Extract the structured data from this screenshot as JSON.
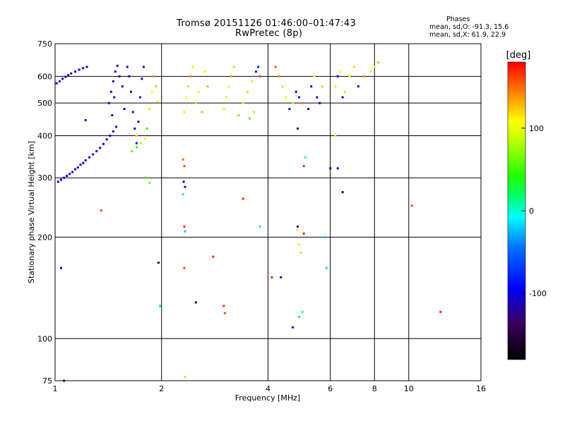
{
  "figure": {
    "title": "Tromsø 20151126 01:46:00–01:47:43",
    "subtitle": "RwPretec (8p)"
  },
  "stats": {
    "heading": "Phases",
    "line_o": "mean, sd,O: -91.3, 15.6",
    "line_x": "mean, sd,X: 61.9, 22.9"
  },
  "colorbar": {
    "unit": "[deg]",
    "range": [
      -180,
      180
    ],
    "ticks": [
      -100,
      0,
      100
    ],
    "tick_labels": [
      "-100",
      "0",
      "100"
    ]
  },
  "chart_data": {
    "type": "scatter",
    "title": "Tromsø 20151126 01:46:00–01:47:43",
    "subtitle": "RwPretec (8p)",
    "xlabel": "Frequency [MHz]",
    "ylabel": "Stationary phase Virtual Height [km]",
    "x_scale": "log",
    "y_scale": "log",
    "xlim": [
      1,
      16
    ],
    "ylim": [
      75,
      750
    ],
    "x_ticks": [
      1,
      2,
      4,
      6,
      8,
      10,
      16
    ],
    "x_tick_labels": [
      "1",
      "2",
      "4",
      "6",
      "8",
      "10",
      "16"
    ],
    "y_ticks": [
      75,
      100,
      200,
      300,
      400,
      500,
      600,
      750
    ],
    "y_tick_labels": [
      "75",
      "100",
      "200",
      "300",
      "400",
      "500",
      "600",
      "750"
    ],
    "grid": true,
    "color_dimension": "phase [deg]",
    "points": [
      [
        1.01,
        572,
        -105
      ],
      [
        1.03,
        580,
        -110
      ],
      [
        1.05,
        590,
        -100
      ],
      [
        1.07,
        598,
        -108
      ],
      [
        1.09,
        605,
        -95
      ],
      [
        1.11,
        612,
        -112
      ],
      [
        1.14,
        620,
        -100
      ],
      [
        1.17,
        628,
        -90
      ],
      [
        1.2,
        635,
        -110
      ],
      [
        1.23,
        640,
        -100
      ],
      [
        1.02,
        292,
        -95
      ],
      [
        1.04,
        296,
        -100
      ],
      [
        1.06,
        300,
        -92
      ],
      [
        1.08,
        304,
        -110
      ],
      [
        1.1,
        308,
        -100
      ],
      [
        1.12,
        312,
        -105
      ],
      [
        1.14,
        318,
        -98
      ],
      [
        1.16,
        322,
        -110
      ],
      [
        1.18,
        328,
        -102
      ],
      [
        1.2,
        332,
        -95
      ],
      [
        1.22,
        338,
        -108
      ],
      [
        1.25,
        345,
        -100
      ],
      [
        1.28,
        352,
        -112
      ],
      [
        1.31,
        360,
        -104
      ],
      [
        1.34,
        368,
        -110
      ],
      [
        1.37,
        378,
        -100
      ],
      [
        1.4,
        390,
        -106
      ],
      [
        1.43,
        400,
        -112
      ],
      [
        1.46,
        412,
        -100
      ],
      [
        1.49,
        425,
        -108
      ],
      [
        1.42,
        500,
        -110
      ],
      [
        1.44,
        540,
        -112
      ],
      [
        1.46,
        580,
        -105
      ],
      [
        1.48,
        620,
        -110
      ],
      [
        1.5,
        645,
        -108
      ],
      [
        1.45,
        460,
        -100
      ],
      [
        1.47,
        520,
        -115
      ],
      [
        1.52,
        600,
        -110
      ],
      [
        1.55,
        560,
        -112
      ],
      [
        1.57,
        480,
        -105
      ],
      [
        1.6,
        640,
        -110
      ],
      [
        1.62,
        600,
        -100
      ],
      [
        1.64,
        540,
        -112
      ],
      [
        1.66,
        470,
        -108
      ],
      [
        1.68,
        420,
        -110
      ],
      [
        1.7,
        380,
        -100
      ],
      [
        1.72,
        440,
        -112
      ],
      [
        1.74,
        520,
        -105
      ],
      [
        1.76,
        590,
        -110
      ],
      [
        1.78,
        640,
        -108
      ],
      [
        1.65,
        360,
        60
      ],
      [
        1.7,
        370,
        40
      ],
      [
        1.75,
        380,
        80
      ],
      [
        1.8,
        392,
        100
      ],
      [
        1.82,
        420,
        50
      ],
      [
        1.85,
        480,
        90
      ],
      [
        1.88,
        540,
        110
      ],
      [
        1.9,
        600,
        140
      ],
      [
        1.93,
        560,
        70
      ],
      [
        1.95,
        505,
        100
      ],
      [
        1.22,
        445,
        -110
      ],
      [
        1.04,
        162,
        -110
      ],
      [
        1.06,
        75,
        -100
      ],
      [
        1.35,
        240,
        160
      ],
      [
        1.96,
        168,
        -140
      ],
      [
        1.98,
        125,
        -20
      ],
      [
        1.7,
        400,
        120
      ],
      [
        1.8,
        300,
        40
      ],
      [
        1.85,
        290,
        60
      ],
      [
        2.32,
        470,
        90
      ],
      [
        2.35,
        520,
        110
      ],
      [
        2.38,
        560,
        120
      ],
      [
        2.42,
        600,
        140
      ],
      [
        2.45,
        640,
        100
      ],
      [
        2.5,
        500,
        80
      ],
      [
        2.55,
        540,
        110
      ],
      [
        2.6,
        470,
        70
      ],
      [
        2.65,
        620,
        100
      ],
      [
        2.7,
        560,
        130
      ],
      [
        2.3,
        340,
        150
      ],
      [
        2.32,
        325,
        160
      ],
      [
        2.31,
        292,
        -130
      ],
      [
        2.33,
        282,
        -110
      ],
      [
        2.3,
        268,
        20
      ],
      [
        2.32,
        215,
        170
      ],
      [
        2.33,
        208,
        -20
      ],
      [
        2.32,
        162,
        160
      ],
      [
        2.33,
        77,
        120
      ],
      [
        2.5,
        128,
        -150
      ],
      [
        2.8,
        175,
        170
      ],
      [
        3.0,
        125,
        170
      ],
      [
        3.02,
        119,
        160
      ],
      [
        3.4,
        260,
        170
      ],
      [
        3.0,
        480,
        90
      ],
      [
        3.05,
        520,
        110
      ],
      [
        3.1,
        560,
        100
      ],
      [
        3.15,
        600,
        130
      ],
      [
        3.2,
        640,
        80
      ],
      [
        3.3,
        460,
        70
      ],
      [
        3.4,
        500,
        100
      ],
      [
        3.5,
        540,
        120
      ],
      [
        3.6,
        580,
        90
      ],
      [
        3.7,
        620,
        -90
      ],
      [
        3.55,
        450,
        60
      ],
      [
        3.65,
        470,
        80
      ],
      [
        3.75,
        640,
        -80
      ],
      [
        3.8,
        600,
        160
      ],
      [
        3.8,
        215,
        10
      ],
      [
        4.1,
        152,
        170
      ],
      [
        4.35,
        152,
        -110
      ],
      [
        4.7,
        108,
        -120
      ],
      [
        4.9,
        116,
        10
      ],
      [
        5.0,
        120,
        0
      ],
      [
        4.95,
        180,
        80
      ],
      [
        4.9,
        190,
        90
      ],
      [
        4.85,
        210,
        100
      ],
      [
        4.85,
        215,
        -120
      ],
      [
        5.05,
        205,
        170
      ],
      [
        5.05,
        325,
        170
      ],
      [
        5.1,
        345,
        0
      ],
      [
        4.85,
        420,
        -120
      ],
      [
        5.8,
        200,
        -20
      ],
      [
        4.2,
        640,
        160
      ],
      [
        4.3,
        600,
        140
      ],
      [
        4.4,
        560,
        120
      ],
      [
        4.5,
        520,
        100
      ],
      [
        4.6,
        480,
        -100
      ],
      [
        4.7,
        500,
        90
      ],
      [
        4.8,
        540,
        -110
      ],
      [
        4.9,
        520,
        -100
      ],
      [
        5.0,
        500,
        150
      ],
      [
        5.2,
        480,
        -120
      ],
      [
        5.3,
        560,
        -90
      ],
      [
        5.4,
        600,
        110
      ],
      [
        5.5,
        520,
        -110
      ],
      [
        5.6,
        500,
        -100
      ],
      [
        5.7,
        560,
        120
      ],
      [
        6.2,
        560,
        90
      ],
      [
        6.3,
        600,
        -100
      ],
      [
        6.4,
        620,
        110
      ],
      [
        6.5,
        520,
        -110
      ],
      [
        6.6,
        540,
        80
      ],
      [
        6.8,
        600,
        100
      ],
      [
        7.0,
        640,
        120
      ],
      [
        7.2,
        560,
        -100
      ],
      [
        7.5,
        600,
        140
      ],
      [
        7.8,
        620,
        90
      ],
      [
        8.0,
        640,
        100
      ],
      [
        8.2,
        660,
        130
      ],
      [
        6.0,
        320,
        -110
      ],
      [
        6.3,
        320,
        -120
      ],
      [
        6.5,
        272,
        -150
      ],
      [
        6.2,
        400,
        110
      ],
      [
        10.2,
        248,
        160
      ],
      [
        12.3,
        120,
        170
      ],
      [
        5.85,
        162,
        20
      ]
    ]
  }
}
